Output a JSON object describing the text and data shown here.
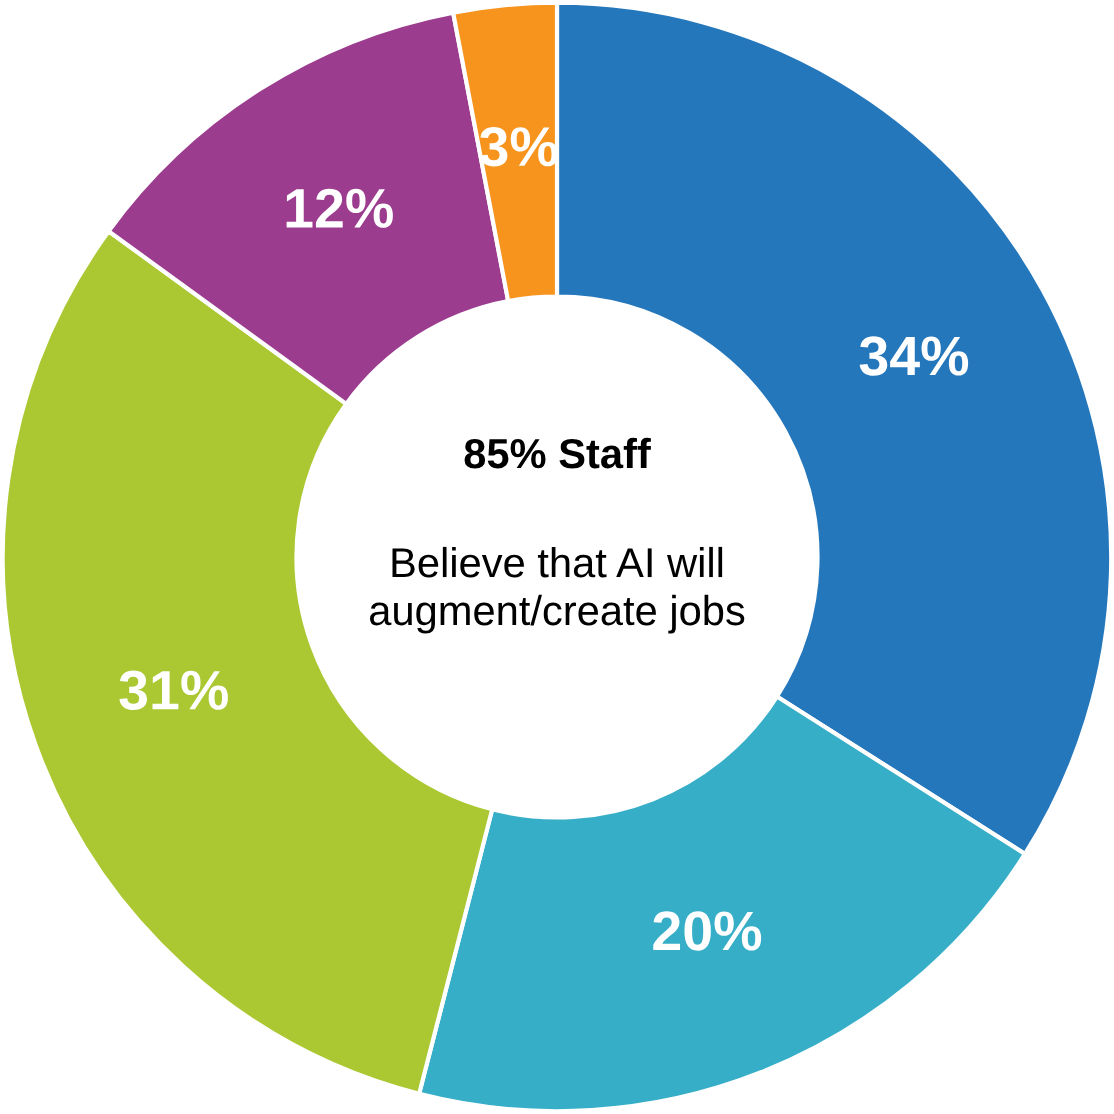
{
  "chart_data": {
    "type": "donut",
    "categories": [
      null,
      null,
      null,
      null,
      null
    ],
    "values": [
      34,
      20,
      31,
      12,
      3
    ],
    "colors": [
      "#2577bc",
      "#36aec8",
      "#abc832",
      "#9b3c8e",
      "#f7941d"
    ],
    "value_labels": [
      "34%",
      "20%",
      "31%",
      "12%",
      "3%"
    ],
    "annotations": [
      "85% Staff",
      "Believe that AI will augment/create jobs"
    ]
  }
}
